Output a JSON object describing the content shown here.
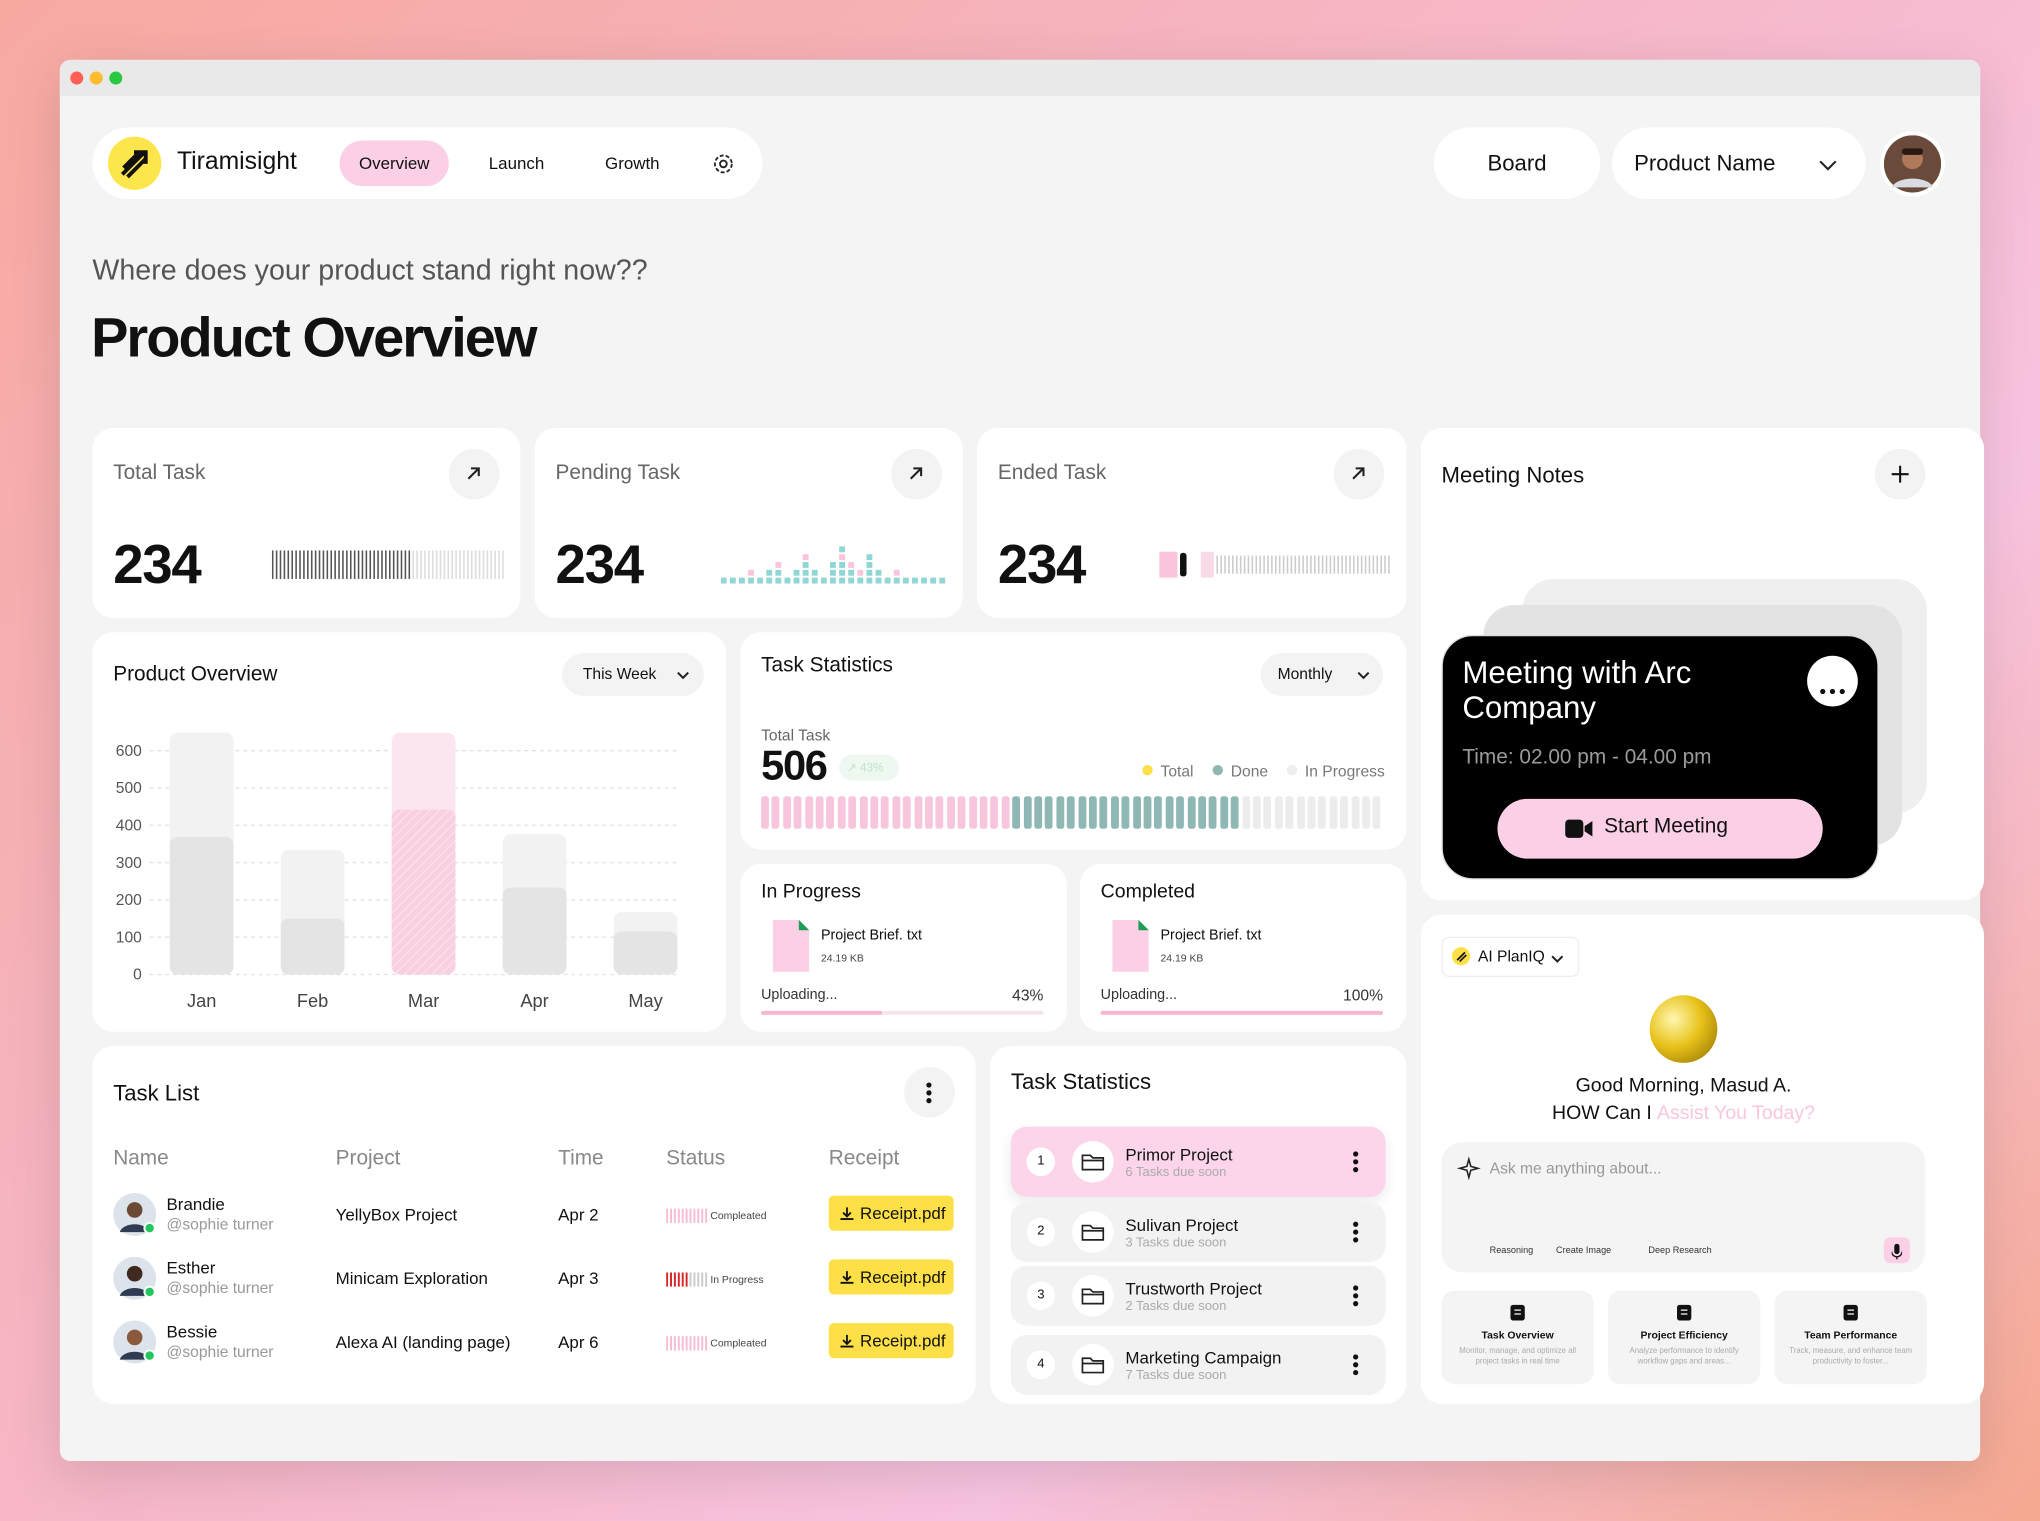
{
  "nav": {
    "brand": "Tiramisight",
    "tabs": [
      "Overview",
      "Launch",
      "Growth"
    ],
    "board": "Board",
    "product": "Product Name"
  },
  "header": {
    "subtitle": "Where does your product stand right now??",
    "title": "Product Overview"
  },
  "stats": [
    {
      "label": "Total Task",
      "value": 234
    },
    {
      "label": "Pending Task",
      "value": 234
    },
    {
      "label": "Ended Task",
      "value": 234
    }
  ],
  "meeting": {
    "title": "Meeting Notes",
    "card_title": "Meeting with Arc Company",
    "time": "Time: 02.00 pm - 04.00 pm",
    "button": "Start Meeting"
  },
  "chart_data": {
    "type": "bar",
    "title": "Product Overview",
    "filter": "This Week",
    "categories": [
      "Jan",
      "Feb",
      "Mar",
      "Apr",
      "May"
    ],
    "series": [
      {
        "colors": [
          "#f2f2f2",
          "#f2f2f2",
          "#fbe6ef",
          "#f2f2f2",
          "#f2f2f2"
        ],
        "values": [
          648,
          334,
          648,
          376,
          167
        ]
      },
      {
        "colors": [
          "#e4e4e4",
          "#e4e4e4",
          "#f9d0e2",
          "#e4e4e4",
          "#e4e4e4"
        ],
        "values": [
          369,
          150,
          442,
          233,
          115
        ]
      }
    ],
    "ylim": [
      0,
      600
    ],
    "yticks": [
      0,
      100,
      200,
      300,
      400,
      500,
      600
    ],
    "grid": true
  },
  "task_statistics": {
    "title": "Task Statistics",
    "filter": "Monthly",
    "total_label": "Total Task",
    "total": 506,
    "change": "43%",
    "legend": [
      {
        "name": "Total",
        "color": "#fde047"
      },
      {
        "name": "Done",
        "color": "#8fb8b5"
      },
      {
        "name": "In Progress",
        "color": "#eeeeee"
      }
    ],
    "stripes": [
      {
        "count": 23,
        "color": "#f7c6dc"
      },
      {
        "count": 21,
        "color": "#8fb8b5"
      },
      {
        "count": 13,
        "color": "#ececec"
      }
    ]
  },
  "uploads": [
    {
      "title": "In Progress",
      "file": "Project Brief. txt",
      "size": "24.19 KB",
      "status": "Uploading...",
      "progress": 43,
      "progress_label": "43%"
    },
    {
      "title": "Completed",
      "file": "Project Brief. txt",
      "size": "24.19 KB",
      "status": "Uploading...",
      "progress": 100,
      "progress_label": "100%"
    }
  ],
  "task_list": {
    "title": "Task List",
    "columns": [
      "Name",
      "Project",
      "Time",
      "Status",
      "Receipt"
    ],
    "rows": [
      {
        "name": "Brandie",
        "handle": "@sophie turner",
        "project": "YellyBox Project",
        "time": "Apr 2",
        "status": "Compleated",
        "receipt": "Receipt.pdf"
      },
      {
        "name": "Esther",
        "handle": "@sophie turner",
        "project": "Minicam Exploration",
        "time": "Apr 3",
        "status": "In Progress",
        "receipt": "Receipt.pdf"
      },
      {
        "name": "Bessie",
        "handle": "@sophie turner",
        "project": "Alexa AI (landing page)",
        "time": "Apr 6",
        "status": "Compleated",
        "receipt": "Receipt.pdf"
      }
    ]
  },
  "projects": {
    "title": "Task Statistics",
    "items": [
      {
        "index": 1,
        "name": "Primor Project",
        "tasks": "6 Tasks due soon"
      },
      {
        "index": 2,
        "name": "Sulivan Project",
        "tasks": "3 Tasks due soon"
      },
      {
        "index": 3,
        "name": "Trustworth Project",
        "tasks": "2 Tasks due soon"
      },
      {
        "index": 4,
        "name": "Marketing Campaign",
        "tasks": "7 Tasks due soon"
      }
    ]
  },
  "assistant": {
    "model": "AI PlanIQ",
    "greeting": "Good Morning, Masud A.",
    "prompt": "HOW Can I",
    "prompt_highlight": "Assist You Today?",
    "placeholder": "Ask me anything about...",
    "tools": [
      "Reasoning",
      "Create Image",
      "Deep Research"
    ],
    "features": [
      {
        "title": "Task Overview",
        "text": "Monitor, manage, and optimize all project tasks in real time"
      },
      {
        "title": "Project Efficiency",
        "text": "Analyze performance to identify workflow gaps and areas..."
      },
      {
        "title": "Team Performance",
        "text": "Track, measure, and enhance team productivity to foster..."
      }
    ]
  }
}
